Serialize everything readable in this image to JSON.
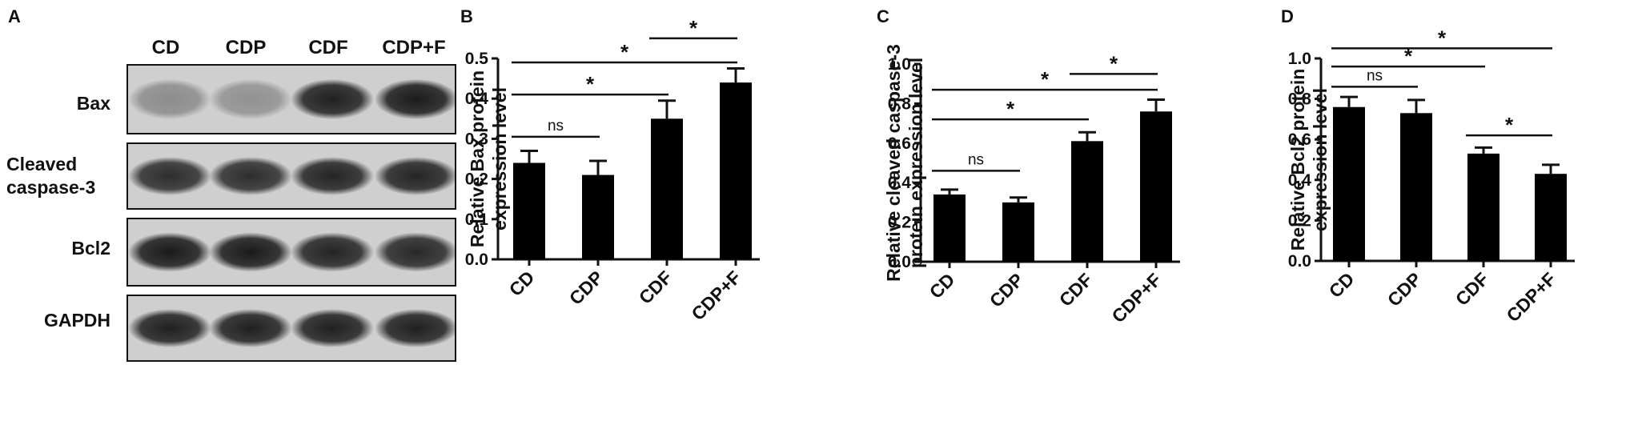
{
  "panels": {
    "a": "A",
    "b": "B",
    "c": "C",
    "d": "D"
  },
  "western_blot": {
    "lanes": [
      "CD",
      "CDP",
      "CDF",
      "CDP+F"
    ],
    "rows": [
      {
        "label_lines": [
          "Bax"
        ],
        "band_intensity": [
          0.35,
          0.32,
          0.92,
          0.95
        ]
      },
      {
        "label_lines": [
          "Cleaved",
          "caspase-3"
        ],
        "band_intensity": [
          0.85,
          0.85,
          0.9,
          0.9
        ]
      },
      {
        "label_lines": [
          "Bcl2"
        ],
        "band_intensity": [
          0.95,
          0.95,
          0.9,
          0.88
        ]
      },
      {
        "label_lines": [
          "GAPDH"
        ],
        "band_intensity": [
          0.92,
          0.92,
          0.92,
          0.92
        ]
      }
    ],
    "band_color": "#111111",
    "background_color": "#cfcfcf"
  },
  "chart_data": [
    {
      "type": "bar",
      "panel": "B",
      "categories": [
        "CD",
        "CDP",
        "CDF",
        "CDP+F"
      ],
      "values": [
        0.24,
        0.21,
        0.35,
        0.44
      ],
      "errors": [
        0.03,
        0.035,
        0.045,
        0.035
      ],
      "ylabel": [
        "Relative Bax protein",
        "expression level"
      ],
      "ylim": [
        0,
        0.5
      ],
      "yticks": [
        0.0,
        0.1,
        0.2,
        0.3,
        0.4,
        0.5
      ],
      "ytick_labels": [
        "0.0",
        "0.1",
        "0.2",
        "0.3",
        "0.4",
        "0.5"
      ],
      "significance": [
        {
          "from": 0,
          "to": 1,
          "label": "ns",
          "y": 0.305
        },
        {
          "from": 0,
          "to": 2,
          "label": "*",
          "y": 0.41
        },
        {
          "from": 0,
          "to": 3,
          "label": "*",
          "y": 0.49
        },
        {
          "from": 2,
          "to": 3,
          "label": "*",
          "y": 0.55
        }
      ],
      "bar_color": "#000000",
      "grid": false
    },
    {
      "type": "bar",
      "panel": "C",
      "categories": [
        "CD",
        "CDP",
        "CDF",
        "CDP+F"
      ],
      "values": [
        0.34,
        0.3,
        0.61,
        0.76
      ],
      "errors": [
        0.025,
        0.025,
        0.045,
        0.06
      ],
      "ylabel": [
        "Relative cleaved caspase-3",
        "protein expression level"
      ],
      "ylim": [
        0,
        1.0
      ],
      "yticks": [
        0.0,
        0.2,
        0.4,
        0.6,
        0.8,
        1.0
      ],
      "ytick_labels": [
        "0.0",
        "0.2",
        "0.4",
        "0.6",
        "0.8",
        "1.0"
      ],
      "significance": [
        {
          "from": 0,
          "to": 1,
          "label": "ns",
          "y": 0.46
        },
        {
          "from": 0,
          "to": 2,
          "label": "*",
          "y": 0.72
        },
        {
          "from": 0,
          "to": 3,
          "label": "*",
          "y": 0.87
        },
        {
          "from": 2,
          "to": 3,
          "label": "*",
          "y": 0.95
        }
      ],
      "bar_color": "#000000",
      "grid": false
    },
    {
      "type": "bar",
      "panel": "D",
      "categories": [
        "CD",
        "CDP",
        "CDF",
        "CDP+F"
      ],
      "values": [
        0.76,
        0.73,
        0.53,
        0.43
      ],
      "errors": [
        0.05,
        0.065,
        0.03,
        0.045
      ],
      "ylabel": [
        "Relative Bcl2 protein",
        "expression level"
      ],
      "ylim": [
        0,
        1.0
      ],
      "yticks": [
        0.0,
        0.2,
        0.4,
        0.6,
        0.8,
        1.0
      ],
      "ytick_labels": [
        "0.0",
        "0.2",
        "0.4",
        "0.6",
        "0.8",
        "1.0"
      ],
      "significance": [
        {
          "from": 0,
          "to": 1,
          "label": "ns",
          "y": 0.86
        },
        {
          "from": 0,
          "to": 2,
          "label": "*",
          "y": 0.96
        },
        {
          "from": 0,
          "to": 3,
          "label": "*",
          "y": 1.05
        },
        {
          "from": 2,
          "to": 3,
          "label": "*",
          "y": 0.62
        }
      ],
      "bar_color": "#000000",
      "grid": false
    }
  ]
}
